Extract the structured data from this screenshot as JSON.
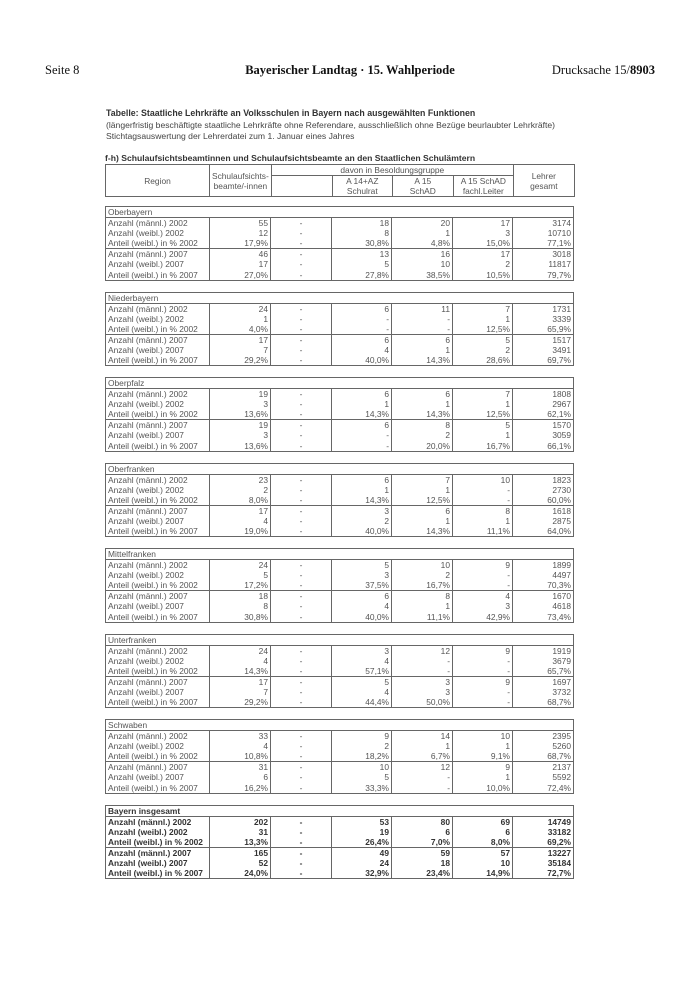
{
  "page_header": {
    "left": "Seite 8",
    "center": "Bayerischer Landtag  ·  15. Wahlperiode",
    "right_prefix": "Drucksache 15/",
    "right_number": "8903"
  },
  "title": {
    "main": "Tabelle: Staatliche Lehrkräfte an Volksschulen in Bayern nach ausgewählten Funktionen",
    "sub1": "(längerfristig beschäftigte staatliche Lehrkräfte ohne Referendare, ausschließlich ohne Bezüge beurlaubter Lehrkräfte)",
    "sub2": "Stichtagsauswertung der Lehrerdatei zum 1. Januar eines Jahres",
    "section": "f-h) Schulaufsichtsbeamtinnen und Schulaufsichtsbeamte an den Staatlichen Schulämtern"
  },
  "table_header": {
    "region": "Region",
    "schulaufsicht_1": "Schulaufsichts-",
    "schulaufsicht_2": "beamte/-innen",
    "davon": "davon in Besoldungsgruppe",
    "a14_1": "A 14+AZ",
    "a14_2": "Schulrat",
    "a15_1": "A 15",
    "a15_2": "SchAD",
    "a15l_1": "A 15 SchAD",
    "a15l_2": "fachl.Leiter",
    "lehrer_1": "Lehrer",
    "lehrer_2": "gesamt"
  },
  "groups": [
    {
      "name": "Oberbayern",
      "rows": [
        [
          "Anzahl (männl.) 2002",
          "55",
          "-",
          "18",
          "20",
          "17",
          "3174"
        ],
        [
          "Anzahl (weibl.) 2002",
          "12",
          "-",
          "8",
          "1",
          "3",
          "10710"
        ],
        [
          "Anteil (weibl.) in % 2002",
          "17,9%",
          "-",
          "30,8%",
          "4,8%",
          "15,0%",
          "77,1%"
        ],
        [
          "Anzahl (männl.) 2007",
          "46",
          "-",
          "13",
          "16",
          "17",
          "3018"
        ],
        [
          "Anzahl (weibl.) 2007",
          "17",
          "-",
          "5",
          "10",
          "2",
          "11817"
        ],
        [
          "Anteil (weibl.) in % 2007",
          "27,0%",
          "-",
          "27,8%",
          "38,5%",
          "10,5%",
          "79,7%"
        ]
      ]
    },
    {
      "name": "Niederbayern",
      "rows": [
        [
          "Anzahl (männl.) 2002",
          "24",
          "-",
          "6",
          "11",
          "7",
          "1731"
        ],
        [
          "Anzahl (weibl.) 2002",
          "1",
          "-",
          "-",
          "-",
          "1",
          "3339"
        ],
        [
          "Anteil (weibl.) in % 2002",
          "4,0%",
          "-",
          "-",
          "-",
          "12,5%",
          "65,9%"
        ],
        [
          "Anzahl (männl.) 2007",
          "17",
          "-",
          "6",
          "6",
          "5",
          "1517"
        ],
        [
          "Anzahl (weibl.) 2007",
          "7",
          "-",
          "4",
          "1",
          "2",
          "3491"
        ],
        [
          "Anteil (weibl.) in % 2007",
          "29,2%",
          "-",
          "40,0%",
          "14,3%",
          "28,6%",
          "69,7%"
        ]
      ]
    },
    {
      "name": "Oberpfalz",
      "rows": [
        [
          "Anzahl (männl.) 2002",
          "19",
          "-",
          "6",
          "6",
          "7",
          "1808"
        ],
        [
          "Anzahl (weibl.) 2002",
          "3",
          "-",
          "1",
          "1",
          "1",
          "2967"
        ],
        [
          "Anteil (weibl.) in % 2002",
          "13,6%",
          "-",
          "14,3%",
          "14,3%",
          "12,5%",
          "62,1%"
        ],
        [
          "Anzahl (männl.) 2007",
          "19",
          "-",
          "6",
          "8",
          "5",
          "1570"
        ],
        [
          "Anzahl (weibl.) 2007",
          "3",
          "-",
          "-",
          "2",
          "1",
          "3059"
        ],
        [
          "Anteil (weibl.) in % 2007",
          "13,6%",
          "-",
          "-",
          "20,0%",
          "16,7%",
          "66,1%"
        ]
      ]
    },
    {
      "name": "Oberfranken",
      "rows": [
        [
          "Anzahl (männl.) 2002",
          "23",
          "-",
          "6",
          "7",
          "10",
          "1823"
        ],
        [
          "Anzahl (weibl.) 2002",
          "2",
          "-",
          "1",
          "1",
          "-",
          "2730"
        ],
        [
          "Anteil (weibl.) in % 2002",
          "8,0%",
          "-",
          "14,3%",
          "12,5%",
          "-",
          "60,0%"
        ],
        [
          "Anzahl (männl.) 2007",
          "17",
          "-",
          "3",
          "6",
          "8",
          "1618"
        ],
        [
          "Anzahl (weibl.) 2007",
          "4",
          "-",
          "2",
          "1",
          "1",
          "2875"
        ],
        [
          "Anteil (weibl.) in % 2007",
          "19,0%",
          "-",
          "40,0%",
          "14,3%",
          "11,1%",
          "64,0%"
        ]
      ]
    },
    {
      "name": "Mittelfranken",
      "rows": [
        [
          "Anzahl (männl.) 2002",
          "24",
          "-",
          "5",
          "10",
          "9",
          "1899"
        ],
        [
          "Anzahl (weibl.) 2002",
          "5",
          "-",
          "3",
          "2",
          "-",
          "4497"
        ],
        [
          "Anteil (weibl.) in % 2002",
          "17,2%",
          "-",
          "37,5%",
          "16,7%",
          "-",
          "70,3%"
        ],
        [
          "Anzahl (männl.) 2007",
          "18",
          "-",
          "6",
          "8",
          "4",
          "1670"
        ],
        [
          "Anzahl (weibl.) 2007",
          "8",
          "-",
          "4",
          "1",
          "3",
          "4618"
        ],
        [
          "Anteil (weibl.) in % 2007",
          "30,8%",
          "-",
          "40,0%",
          "11,1%",
          "42,9%",
          "73,4%"
        ]
      ]
    },
    {
      "name": "Unterfranken",
      "rows": [
        [
          "Anzahl (männl.) 2002",
          "24",
          "-",
          "3",
          "12",
          "9",
          "1919"
        ],
        [
          "Anzahl (weibl.) 2002",
          "4",
          "-",
          "4",
          "-",
          "-",
          "3679"
        ],
        [
          "Anteil (weibl.) in % 2002",
          "14,3%",
          "-",
          "57,1%",
          "-",
          "-",
          "65,7%"
        ],
        [
          "Anzahl (männl.) 2007",
          "17",
          "-",
          "5",
          "3",
          "9",
          "1697"
        ],
        [
          "Anzahl (weibl.) 2007",
          "7",
          "-",
          "4",
          "3",
          "-",
          "3732"
        ],
        [
          "Anteil (weibl.) in % 2007",
          "29,2%",
          "-",
          "44,4%",
          "50,0%",
          "-",
          "68,7%"
        ]
      ]
    },
    {
      "name": "Schwaben",
      "rows": [
        [
          "Anzahl (männl.) 2002",
          "33",
          "-",
          "9",
          "14",
          "10",
          "2395"
        ],
        [
          "Anzahl (weibl.) 2002",
          "4",
          "-",
          "2",
          "1",
          "1",
          "5260"
        ],
        [
          "Anteil (weibl.) in % 2002",
          "10,8%",
          "-",
          "18,2%",
          "6,7%",
          "9,1%",
          "68,7%"
        ],
        [
          "Anzahl (männl.) 2007",
          "31",
          "-",
          "10",
          "12",
          "9",
          "2137"
        ],
        [
          "Anzahl (weibl.) 2007",
          "6",
          "-",
          "5",
          "-",
          "1",
          "5592"
        ],
        [
          "Anteil (weibl.) in % 2007",
          "16,2%",
          "-",
          "33,3%",
          "-",
          "10,0%",
          "72,4%"
        ]
      ]
    },
    {
      "name": "Bayern insgesamt",
      "bold": true,
      "rows": [
        [
          "Anzahl (männl.) 2002",
          "202",
          "-",
          "53",
          "80",
          "69",
          "14749"
        ],
        [
          "Anzahl (weibl.) 2002",
          "31",
          "-",
          "19",
          "6",
          "6",
          "33182"
        ],
        [
          "Anteil (weibl.) in % 2002",
          "13,3%",
          "-",
          "26,4%",
          "7,0%",
          "8,0%",
          "69,2%"
        ],
        [
          "Anzahl (männl.) 2007",
          "165",
          "-",
          "49",
          "59",
          "57",
          "13227"
        ],
        [
          "Anzahl (weibl.) 2007",
          "52",
          "-",
          "24",
          "18",
          "10",
          "35184"
        ],
        [
          "Anteil (weibl.) in % 2007",
          "24,0%",
          "-",
          "32,9%",
          "23,4%",
          "14,9%",
          "72,7%"
        ]
      ]
    }
  ]
}
